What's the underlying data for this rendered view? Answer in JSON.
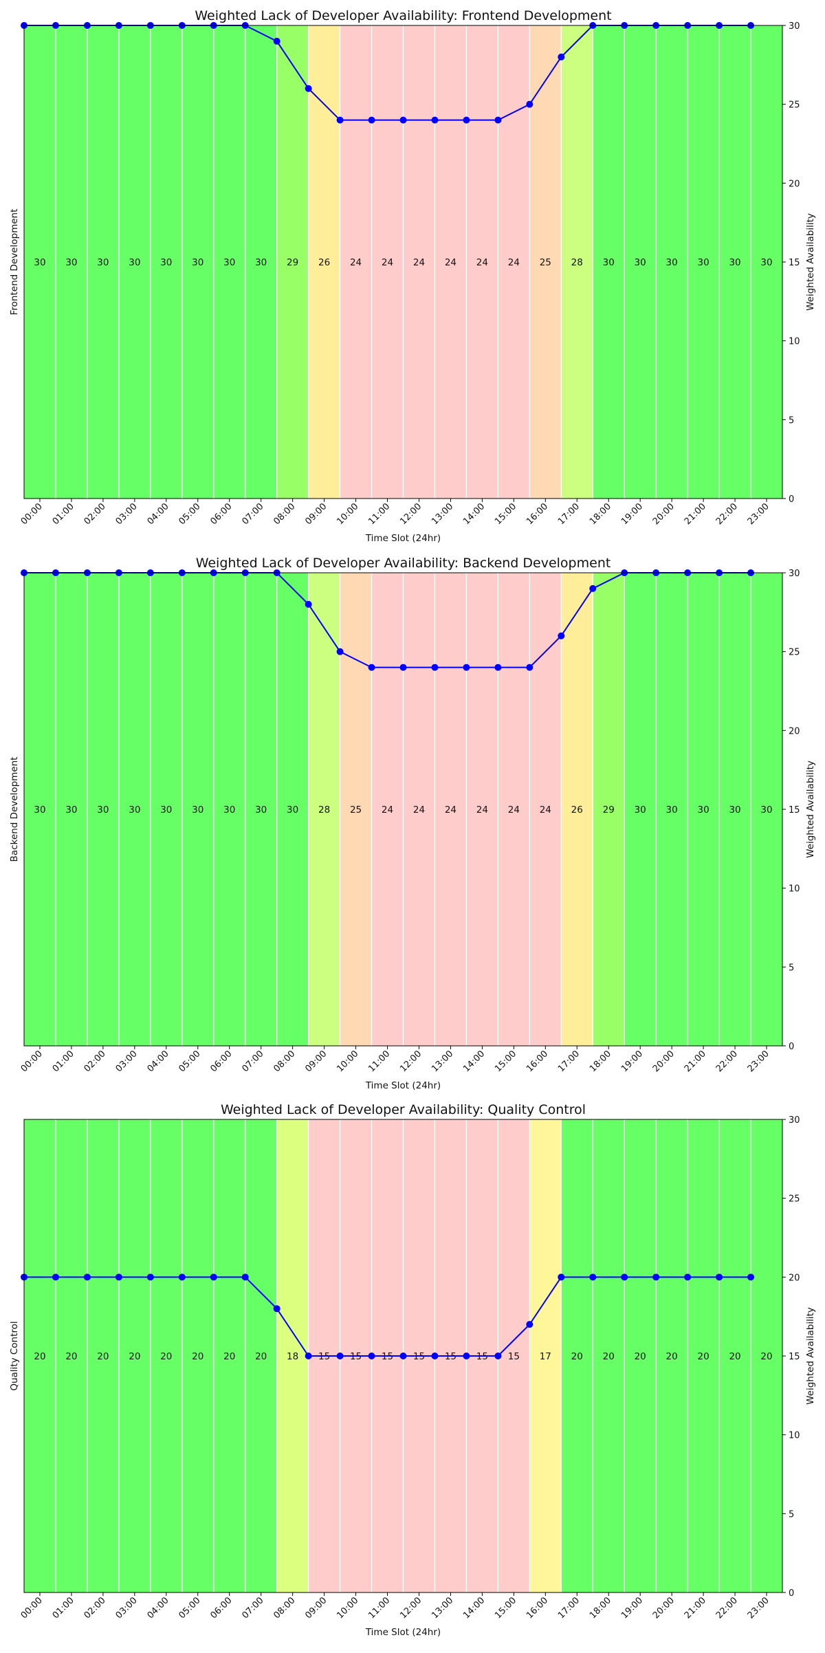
{
  "chart_data": [
    {
      "type": "bar",
      "title": "Weighted Lack of Developer Availability: Frontend Development",
      "ylabel_left": "Frontend Development",
      "ylabel_right": "Weighted Availability",
      "xlabel": "Time Slot (24hr)",
      "categories": [
        "00:00",
        "01:00",
        "02:00",
        "03:00",
        "04:00",
        "05:00",
        "06:00",
        "07:00",
        "08:00",
        "09:00",
        "10:00",
        "11:00",
        "12:00",
        "13:00",
        "14:00",
        "15:00",
        "16:00",
        "17:00",
        "18:00",
        "19:00",
        "20:00",
        "21:00",
        "22:00",
        "23:00"
      ],
      "values": [
        30,
        30,
        30,
        30,
        30,
        30,
        30,
        30,
        29,
        26,
        24,
        24,
        24,
        24,
        24,
        24,
        25,
        28,
        30,
        30,
        30,
        30,
        30,
        30
      ],
      "line_values": [
        30,
        30,
        30,
        30,
        30,
        30,
        30,
        30,
        29,
        26,
        24,
        24,
        24,
        24,
        24,
        24,
        25,
        28,
        30,
        30,
        30,
        30,
        30,
        30
      ],
      "ylim": [
        0,
        30
      ],
      "yticks": [
        0,
        5,
        10,
        15,
        20,
        25,
        30
      ],
      "line_color": "#0000ff"
    },
    {
      "type": "bar",
      "title": "Weighted Lack of Developer Availability: Backend Development",
      "ylabel_left": "Backend Development",
      "ylabel_right": "Weighted Availability",
      "xlabel": "Time Slot (24hr)",
      "categories": [
        "00:00",
        "01:00",
        "02:00",
        "03:00",
        "04:00",
        "05:00",
        "06:00",
        "07:00",
        "08:00",
        "09:00",
        "10:00",
        "11:00",
        "12:00",
        "13:00",
        "14:00",
        "15:00",
        "16:00",
        "17:00",
        "18:00",
        "19:00",
        "20:00",
        "21:00",
        "22:00",
        "23:00"
      ],
      "values": [
        30,
        30,
        30,
        30,
        30,
        30,
        30,
        30,
        30,
        28,
        25,
        24,
        24,
        24,
        24,
        24,
        24,
        26,
        29,
        30,
        30,
        30,
        30,
        30
      ],
      "line_values": [
        30,
        30,
        30,
        30,
        30,
        30,
        30,
        30,
        30,
        28,
        25,
        24,
        24,
        24,
        24,
        24,
        24,
        26,
        29,
        30,
        30,
        30,
        30,
        30
      ],
      "ylim": [
        0,
        30
      ],
      "yticks": [
        0,
        5,
        10,
        15,
        20,
        25,
        30
      ],
      "line_color": "#0000ff"
    },
    {
      "type": "bar",
      "title": "Weighted Lack of Developer Availability: Quality Control",
      "ylabel_left": "Quality Control",
      "ylabel_right": "Weighted Availability",
      "xlabel": "Time Slot (24hr)",
      "categories": [
        "00:00",
        "01:00",
        "02:00",
        "03:00",
        "04:00",
        "05:00",
        "06:00",
        "07:00",
        "08:00",
        "09:00",
        "10:00",
        "11:00",
        "12:00",
        "13:00",
        "14:00",
        "15:00",
        "16:00",
        "17:00",
        "18:00",
        "19:00",
        "20:00",
        "21:00",
        "22:00",
        "23:00"
      ],
      "values": [
        20,
        20,
        20,
        20,
        20,
        20,
        20,
        20,
        18,
        15,
        15,
        15,
        15,
        15,
        15,
        15,
        17,
        20,
        20,
        20,
        20,
        20,
        20,
        20
      ],
      "line_values": [
        20,
        20,
        20,
        20,
        20,
        20,
        20,
        20,
        18,
        15,
        15,
        15,
        15,
        15,
        15,
        15,
        17,
        20,
        20,
        20,
        20,
        20,
        20,
        20
      ],
      "ylim": [
        0,
        30
      ],
      "yticks": [
        0,
        5,
        10,
        15,
        20,
        25,
        30
      ],
      "line_color": "#0000ff"
    }
  ]
}
